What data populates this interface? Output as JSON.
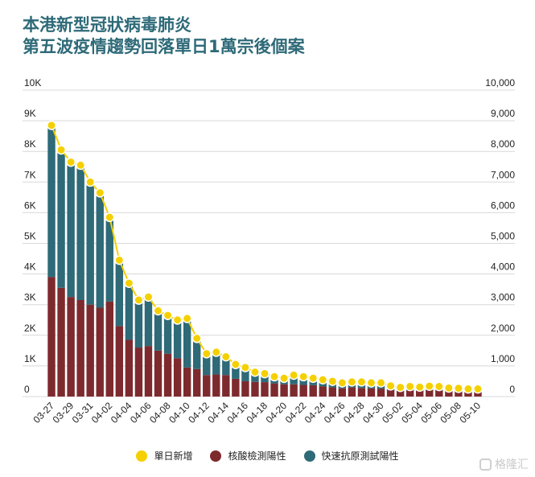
{
  "title_line1": "本港新型冠狀病毒肺炎",
  "title_line2": "第五波疫情趨勢回落單日1萬宗後個案",
  "watermark": "格隆汇",
  "colors": {
    "line": "#f5d000",
    "pcr": "#7d2a2e",
    "rat": "#2e6a78",
    "grid": "#d8d8d8"
  },
  "chart_data": {
    "type": "bar",
    "stacked": true,
    "dates": [
      "03-27",
      "03-28",
      "03-29",
      "03-30",
      "03-31",
      "04-01",
      "04-02",
      "04-03",
      "04-04",
      "04-05",
      "04-06",
      "04-07",
      "04-08",
      "04-09",
      "04-10",
      "04-11",
      "04-12",
      "04-13",
      "04-14",
      "04-15",
      "04-16",
      "04-17",
      "04-18",
      "04-19",
      "04-20",
      "04-21",
      "04-22",
      "04-23",
      "04-24",
      "04-25",
      "04-26",
      "04-27",
      "04-28",
      "04-29",
      "04-30",
      "05-01",
      "05-02",
      "05-03",
      "05-04",
      "05-05",
      "05-06",
      "05-07",
      "05-08",
      "05-09",
      "05-10"
    ],
    "xtick_labels": [
      "03-27",
      "03-29",
      "03-31",
      "04-02",
      "04-04",
      "04-06",
      "04-08",
      "04-10",
      "04-12",
      "04-14",
      "04-16",
      "04-18",
      "04-20",
      "04-22",
      "04-24",
      "04-26",
      "04-28",
      "04-30",
      "05-02",
      "05-04",
      "05-06",
      "05-08",
      "05-10"
    ],
    "series": [
      {
        "name": "核酸檢測陽性",
        "type": "bar",
        "values": [
          3900,
          3550,
          3250,
          3150,
          3000,
          2900,
          3100,
          2300,
          1850,
          1600,
          1650,
          1500,
          1400,
          1250,
          950,
          900,
          700,
          720,
          700,
          580,
          500,
          480,
          470,
          430,
          400,
          400,
          380,
          370,
          330,
          300,
          270,
          300,
          280,
          270,
          260,
          210,
          190,
          200,
          190,
          210,
          200,
          180,
          170,
          160,
          160
        ]
      },
      {
        "name": "快速抗原測試陽性",
        "type": "bar",
        "values": [
          4900,
          4500,
          4400,
          4400,
          4000,
          3800,
          2700,
          2150,
          1850,
          1550,
          1600,
          1300,
          1250,
          1250,
          1600,
          1000,
          750,
          750,
          570,
          550,
          500,
          400,
          380,
          280,
          270,
          300,
          280,
          250,
          250,
          250,
          180,
          180,
          200,
          200,
          180,
          150,
          130,
          130,
          130,
          130,
          130,
          110,
          110,
          100,
          100
        ]
      },
      {
        "name": "單日新增",
        "type": "line",
        "values": [
          8850,
          8050,
          7650,
          7550,
          7000,
          6650,
          5850,
          4450,
          3700,
          3150,
          3250,
          2800,
          2650,
          2500,
          2550,
          1900,
          1400,
          1450,
          1300,
          1050,
          950,
          800,
          750,
          650,
          600,
          700,
          650,
          600,
          550,
          500,
          450,
          480,
          480,
          450,
          450,
          350,
          300,
          330,
          310,
          340,
          330,
          280,
          270,
          250,
          250
        ]
      }
    ],
    "y_left": {
      "min": 0,
      "max": 10000,
      "ticks": [
        "0",
        "1K",
        "2K",
        "3K",
        "4K",
        "5K",
        "6K",
        "7K",
        "8K",
        "9K",
        "10K"
      ]
    },
    "y_right": {
      "min": 0,
      "max": 10000,
      "ticks": [
        "0",
        "1,000",
        "2,000",
        "3,000",
        "4,000",
        "5,000",
        "6,000",
        "7,000",
        "8,000",
        "9,000",
        "10,000"
      ]
    },
    "legend": [
      "單日新增",
      "核酸檢測陽性",
      "快速抗原測試陽性"
    ],
    "legend_position": "bottom"
  }
}
